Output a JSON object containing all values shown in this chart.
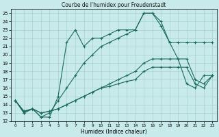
{
  "title": "Courbe de l'humidex pour Freudenstadt",
  "xlabel": "Humidex (Indice chaleur)",
  "xlim": [
    -0.5,
    23.5
  ],
  "ylim": [
    12,
    25.5
  ],
  "yticks": [
    12,
    13,
    14,
    15,
    16,
    17,
    18,
    19,
    20,
    21,
    22,
    23,
    24,
    25
  ],
  "xticks": [
    0,
    1,
    2,
    3,
    4,
    5,
    6,
    7,
    8,
    9,
    10,
    11,
    12,
    13,
    14,
    15,
    16,
    17,
    18,
    19,
    20,
    21,
    22,
    23
  ],
  "bg_color": "#c8eaea",
  "line_color": "#1a6b5a",
  "grid_color": "#a0cccc",
  "line1_x": [
    0,
    1,
    2,
    3,
    4,
    5,
    6,
    7,
    8,
    9,
    10,
    11,
    12,
    13,
    14,
    15,
    16,
    17,
    18,
    19,
    20,
    21,
    22,
    23
  ],
  "line1_y": [
    14.5,
    13.0,
    13.5,
    12.5,
    12.5,
    15.0,
    21.5,
    23.0,
    21.0,
    22.0,
    22.0,
    22.5,
    23.0,
    23.0,
    23.0,
    25.0,
    25.0,
    24.0,
    21.5,
    19.5,
    16.5,
    16.0,
    17.5,
    17.5
  ],
  "line2_x": [
    0,
    1,
    2,
    3,
    4,
    5,
    6,
    7,
    8,
    9,
    10,
    11,
    12,
    13,
    14,
    15,
    16,
    17,
    18,
    19,
    20,
    21,
    22,
    23
  ],
  "line2_y": [
    14.5,
    13.0,
    13.5,
    12.5,
    13.0,
    14.5,
    16.0,
    17.5,
    19.0,
    20.0,
    21.0,
    21.5,
    22.0,
    22.5,
    23.0,
    25.0,
    25.0,
    23.5,
    21.5,
    21.5,
    21.5,
    21.5,
    21.5,
    21.5
  ],
  "line3_x": [
    0,
    1,
    2,
    3,
    4,
    5,
    6,
    7,
    8,
    9,
    10,
    11,
    12,
    13,
    14,
    15,
    16,
    17,
    18,
    19,
    20,
    21,
    22,
    23
  ],
  "line3_y": [
    14.5,
    13.2,
    13.5,
    13.0,
    13.2,
    13.5,
    14.0,
    14.5,
    15.0,
    15.5,
    16.0,
    16.5,
    17.0,
    17.5,
    18.0,
    19.0,
    19.5,
    19.5,
    19.5,
    19.5,
    19.5,
    17.0,
    16.5,
    17.5
  ],
  "line4_x": [
    0,
    1,
    2,
    3,
    4,
    5,
    6,
    7,
    8,
    9,
    10,
    11,
    12,
    13,
    14,
    15,
    16,
    17,
    18,
    19,
    20,
    21,
    22,
    23
  ],
  "line4_y": [
    14.5,
    13.2,
    13.5,
    13.0,
    13.2,
    13.5,
    14.0,
    14.5,
    15.0,
    15.5,
    16.0,
    16.2,
    16.5,
    16.8,
    17.0,
    18.0,
    18.5,
    18.5,
    18.5,
    18.5,
    18.5,
    16.5,
    16.0,
    17.5
  ]
}
